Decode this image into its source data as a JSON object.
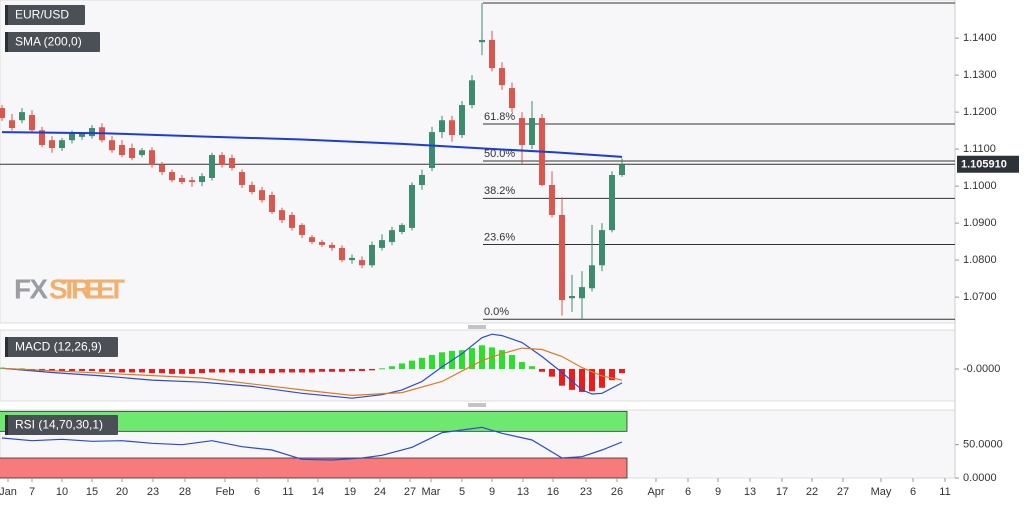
{
  "chart_data": [
    {
      "type": "candlestick",
      "title": "EUR/USD",
      "x": [
        0,
        1,
        2,
        3,
        4,
        5,
        6,
        7,
        8,
        9,
        10,
        11,
        12,
        13,
        14,
        15,
        16,
        17,
        18,
        19,
        20,
        21,
        22,
        23,
        24,
        25,
        26,
        27,
        28,
        29,
        30,
        31,
        32,
        33,
        34,
        35,
        36,
        37,
        38,
        39,
        40,
        41,
        42,
        43,
        44,
        45,
        46,
        47,
        48,
        49,
        50,
        51,
        52,
        53,
        54,
        55,
        56,
        57,
        58,
        59,
        60,
        61,
        62
      ],
      "open": [
        1.1211,
        1.1178,
        1.1178,
        1.1192,
        1.1151,
        1.1124,
        1.1103,
        1.1124,
        1.1133,
        1.1135,
        1.1159,
        1.1124,
        1.1111,
        1.1103,
        1.1084,
        1.1097,
        1.1057,
        1.1038,
        1.1022,
        1.1016,
        1.1011,
        1.1022,
        1.1084,
        1.1076,
        1.1038,
        1.1003,
        1.0989,
        1.0976,
        1.0935,
        1.0922,
        1.0895,
        1.0862,
        1.0849,
        1.0841,
        1.0833,
        1.08,
        1.08,
        1.0786,
        1.0833,
        1.0849,
        1.0876,
        1.0887,
        1.1003,
        1.1049,
        1.1146,
        1.1178,
        1.1138,
        1.1219,
        1.1389,
        1.1395,
        1.1319,
        1.1265,
        1.1184,
        1.1111,
        1.1184,
        1.1003,
        1.0922,
        1.0697,
        1.0697,
        1.0724,
        1.0786,
        1.0881,
        1.103
      ],
      "high": [
        1.1219,
        1.1195,
        1.1211,
        1.1205,
        1.116,
        1.1135,
        1.113,
        1.115,
        1.1146,
        1.1165,
        1.117,
        1.1135,
        1.1125,
        1.1115,
        1.1103,
        1.1105,
        1.1065,
        1.1045,
        1.103,
        1.1025,
        1.1035,
        1.109,
        1.1092,
        1.1085,
        1.1045,
        1.1012,
        1.0998,
        1.0985,
        1.0942,
        1.093,
        1.09,
        1.0868,
        1.0855,
        1.0848,
        1.084,
        1.0815,
        1.081,
        1.085,
        1.087,
        1.089,
        1.09,
        1.101,
        1.1045,
        1.116,
        1.119,
        1.119,
        1.123,
        1.13,
        1.1495,
        1.142,
        1.1335,
        1.128,
        1.12,
        1.123,
        1.1195,
        1.104,
        1.097,
        1.076,
        1.077,
        1.0895,
        1.09,
        1.104,
        1.1075
      ],
      "low": [
        1.1176,
        1.115,
        1.117,
        1.1143,
        1.1105,
        1.109,
        1.1095,
        1.1115,
        1.1125,
        1.1128,
        1.1118,
        1.109,
        1.1078,
        1.107,
        1.1078,
        1.105,
        1.103,
        1.101,
        1.1005,
        1.0998,
        1.1,
        1.1015,
        1.105,
        1.1042,
        1.0995,
        1.0978,
        1.0955,
        1.0925,
        1.09,
        1.088,
        1.086,
        1.0843,
        1.0835,
        1.0825,
        1.0795,
        1.079,
        1.0778,
        1.078,
        1.0826,
        1.084,
        1.087,
        1.088,
        1.099,
        1.104,
        1.113,
        1.112,
        1.113,
        1.121,
        1.1354,
        1.131,
        1.126,
        1.12,
        1.106,
        1.11,
        1.1,
        1.0915,
        1.065,
        1.066,
        1.064,
        1.0715,
        1.077,
        1.0875,
        1.1025
      ],
      "close": [
        1.1184,
        1.1157,
        1.12,
        1.1151,
        1.1111,
        1.1103,
        1.1124,
        1.1146,
        1.1143,
        1.1157,
        1.1124,
        1.1097,
        1.1084,
        1.1076,
        1.1097,
        1.1057,
        1.1038,
        1.1016,
        1.1011,
        1.1011,
        1.1027,
        1.1084,
        1.1057,
        1.1049,
        1.1003,
        1.0984,
        1.0962,
        1.093,
        1.0908,
        1.0887,
        1.0868,
        1.0849,
        1.0841,
        1.0833,
        1.08,
        1.0806,
        1.0786,
        1.0841,
        1.0854,
        1.0881,
        1.0895,
        1.1003,
        1.103,
        1.1146,
        1.1178,
        1.1138,
        1.1219,
        1.1286,
        1.1395,
        1.1319,
        1.1273,
        1.1211,
        1.1111,
        1.1184,
        1.1003,
        1.0922,
        1.0692,
        1.0703,
        1.0727,
        1.0786,
        1.0881,
        1.103,
        1.1059
      ],
      "up_color": "#3d8c6e",
      "down_color": "#d9574d",
      "series": [
        {
          "name": "SMA (200,0)",
          "color": "#1c3cd6",
          "x": [
            0,
            10,
            20,
            30,
            40,
            50,
            55,
            62
          ],
          "values": [
            1.1146,
            1.1143,
            1.1134,
            1.1126,
            1.1114,
            1.1099,
            1.1092,
            1.1079
          ]
        }
      ],
      "levels": {
        "values": [
          1.064,
          1.0842,
          1.0967,
          1.1068,
          1.1168,
          1.1495
        ],
        "labels": [
          "0.0%",
          "23.6%",
          "38.2%",
          "50.0%",
          "61.8%",
          null
        ]
      },
      "last_price": {
        "value": 1.10591,
        "label": "1.105910"
      },
      "watermark": [
        "FX",
        "STREET"
      ],
      "xlim": [
        -0.2,
        95.3
      ],
      "ylim": [
        1.063,
        1.1503
      ],
      "yticks": [
        {
          "value": 1.07,
          "label": "1.0700"
        },
        {
          "value": 1.08,
          "label": "1.0800"
        },
        {
          "value": 1.09,
          "label": "1.0900"
        },
        {
          "value": 1.1,
          "label": "1.1000"
        },
        {
          "value": 1.11,
          "label": "1.1100"
        },
        {
          "value": 1.12,
          "label": "1.1200"
        },
        {
          "value": 1.13,
          "label": "1.1300"
        },
        {
          "value": 1.14,
          "label": "1.1400"
        }
      ]
    },
    {
      "type": "macd",
      "title": "MACD (12,26,9)",
      "x": [
        0,
        1,
        2,
        3,
        4,
        5,
        6,
        7,
        8,
        9,
        10,
        11,
        12,
        13,
        14,
        15,
        16,
        17,
        18,
        19,
        20,
        21,
        22,
        23,
        24,
        25,
        26,
        27,
        28,
        29,
        30,
        31,
        32,
        33,
        34,
        35,
        36,
        37,
        38,
        39,
        40,
        41,
        42,
        43,
        44,
        45,
        46,
        47,
        48,
        49,
        50,
        51,
        52,
        53,
        54,
        55,
        56,
        57,
        58,
        59,
        60,
        61,
        62
      ],
      "values": [
        0.0002,
        0.0001,
        0.0001,
        -0.0002,
        -0.0003,
        -0.0003,
        -0.0003,
        -0.0003,
        -0.0003,
        -0.0003,
        -0.0004,
        -0.0004,
        -0.0005,
        -0.0005,
        -0.0005,
        -0.0006,
        -0.0006,
        -0.0007,
        -0.0007,
        -0.0007,
        -0.0006,
        -0.0005,
        -0.0005,
        -0.0005,
        -0.0006,
        -0.0006,
        -0.0006,
        -0.0006,
        -0.0005,
        -0.0005,
        -0.0005,
        -0.0005,
        -0.0004,
        -0.0004,
        -0.0004,
        -0.0003,
        -0.0003,
        -0.0002,
        0.0001,
        0.0004,
        0.0008,
        0.0012,
        0.0016,
        0.002,
        0.0024,
        0.0026,
        0.0027,
        0.003,
        0.0034,
        0.0031,
        0.0027,
        0.002,
        0.001,
        0.0004,
        -0.0004,
        -0.0011,
        -0.0024,
        -0.003,
        -0.0033,
        -0.0032,
        -0.0027,
        -0.0016,
        -0.0006
      ],
      "up_color": "#2be02b",
      "down_color": "#ec1c1c",
      "series": [
        {
          "color": "#2a4bd0",
          "x": [
            0,
            5,
            10,
            15,
            20,
            25,
            30,
            35,
            38,
            40,
            42,
            44,
            46,
            48,
            49,
            50,
            52,
            54,
            56,
            58,
            59,
            60,
            62
          ],
          "values": [
            0.0001,
            -0.0005,
            -0.001,
            -0.0016,
            -0.0019,
            -0.0025,
            -0.0035,
            -0.0042,
            -0.0037,
            -0.003,
            -0.0018,
            0.0003,
            0.0022,
            0.0045,
            0.005,
            0.0048,
            0.0038,
            0.0018,
            -0.0005,
            -0.003,
            -0.0036,
            -0.0035,
            -0.002
          ]
        },
        {
          "color": "#e07a22",
          "x": [
            0,
            10,
            20,
            30,
            35,
            40,
            44,
            48,
            50,
            52,
            54,
            56,
            58,
            60,
            62
          ],
          "values": [
            0.0001,
            -0.0006,
            -0.0013,
            -0.003,
            -0.0038,
            -0.0034,
            -0.0018,
            0.0012,
            0.0022,
            0.003,
            0.0028,
            0.0018,
            0.0002,
            -0.001,
            -0.0016
          ]
        }
      ],
      "xlim": [
        -0.2,
        95.3
      ],
      "ylim": [
        -0.0046,
        0.0056
      ],
      "yticks": [
        {
          "value": 0,
          "label": "-0.0000"
        }
      ]
    },
    {
      "type": "rsi",
      "title": "RSI (14,70,30,1)",
      "series": [
        {
          "color": "#2a4bd0",
          "x": [
            0,
            3,
            6,
            9,
            12,
            15,
            18,
            21,
            24,
            27,
            30,
            33,
            36,
            38,
            41,
            44,
            46,
            48,
            50,
            53,
            56,
            58,
            60,
            62
          ],
          "values": [
            60,
            56,
            58,
            55,
            56,
            52,
            50,
            56,
            47,
            42,
            28,
            27,
            30,
            34,
            46,
            68,
            72,
            76,
            67,
            57,
            30,
            32,
            42,
            54
          ]
        }
      ],
      "bands": [
        {
          "from": 70,
          "to": 100,
          "color": "#6ee86e"
        },
        {
          "from": 0,
          "to": 30,
          "color": "#f77b7b"
        }
      ],
      "xlim": [
        -0.2,
        95.3
      ],
      "ylim": [
        0,
        102
      ],
      "yticks": [
        {
          "value": 0,
          "label": "0.0000"
        },
        {
          "value": 50,
          "label": "50.0000"
        }
      ],
      "xticks": [
        {
          "value": 0.6,
          "label": "Jan"
        },
        {
          "value": 3,
          "label": "7"
        },
        {
          "value": 6,
          "label": "10"
        },
        {
          "value": 9,
          "label": "15"
        },
        {
          "value": 12,
          "label": "20"
        },
        {
          "value": 15.1,
          "label": "23"
        },
        {
          "value": 18.3,
          "label": "28"
        },
        {
          "value": 22.3,
          "label": "Feb"
        },
        {
          "value": 25.5,
          "label": "6"
        },
        {
          "value": 28.6,
          "label": "11"
        },
        {
          "value": 31.6,
          "label": "14"
        },
        {
          "value": 34.8,
          "label": "19"
        },
        {
          "value": 37.8,
          "label": "24"
        },
        {
          "value": 40.8,
          "label": "27"
        },
        {
          "value": 42.9,
          "label": "Mar"
        },
        {
          "value": 46,
          "label": "5"
        },
        {
          "value": 49,
          "label": "9"
        },
        {
          "value": 52.1,
          "label": "13"
        },
        {
          "value": 55.1,
          "label": "16"
        },
        {
          "value": 58.4,
          "label": "23"
        },
        {
          "value": 61.5,
          "label": "26"
        },
        {
          "value": 65.4,
          "label": "Apr"
        },
        {
          "value": 68.6,
          "label": "6"
        },
        {
          "value": 71.6,
          "label": "9"
        },
        {
          "value": 74.8,
          "label": "13"
        },
        {
          "value": 78,
          "label": "17"
        },
        {
          "value": 81,
          "label": "22"
        },
        {
          "value": 84.1,
          "label": "27"
        },
        {
          "value": 87.9,
          "label": "May"
        },
        {
          "value": 91.1,
          "label": "6"
        },
        {
          "value": 94.3,
          "label": "11"
        }
      ]
    }
  ]
}
